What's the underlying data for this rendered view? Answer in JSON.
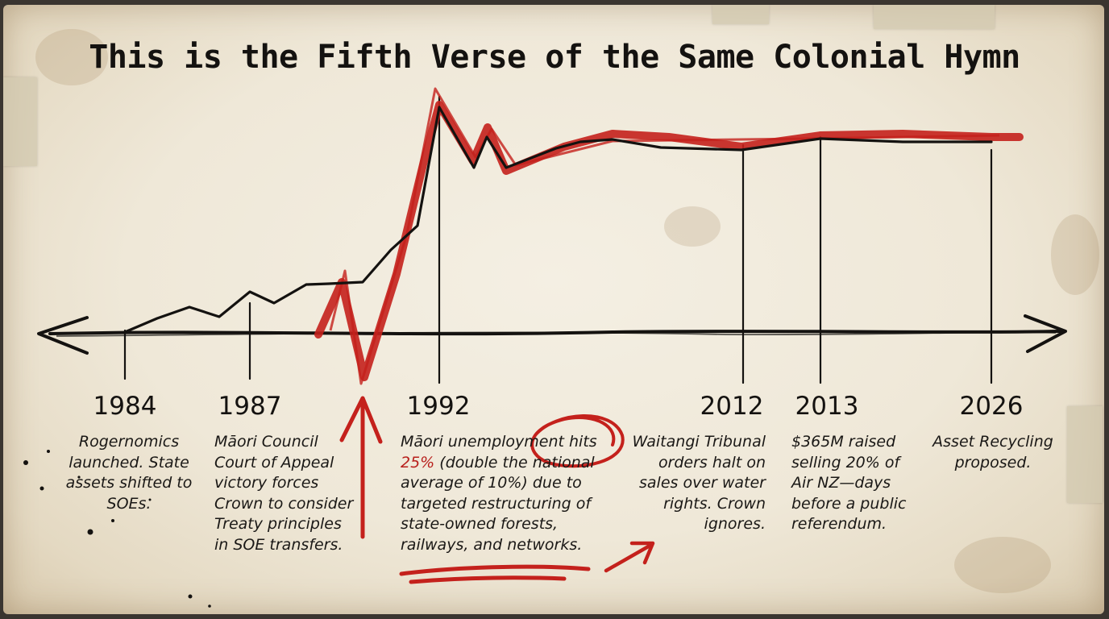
{
  "title": "This is the Fifth Verse of the Same Colonial Hymn",
  "colors": {
    "ink": "#141210",
    "accent_red": "#c4211c",
    "paper": "#efe8d8"
  },
  "events": [
    {
      "year": "1984",
      "text": "Rogernomics launched. State assets shifted to SOEs."
    },
    {
      "year": "1987",
      "text": "Māori Council Court of Appeal victory forces Crown to consider Treaty principles in SOE transfers."
    },
    {
      "year": "1992",
      "text_highlight": "25%",
      "text_pre": "Māori unemployment hits",
      "text_post": "(double the national average of 10%) due to targeted restructuring of state-owned forests, railways, and networks."
    },
    {
      "year": "2012",
      "text": "Waitangi Tribunal orders halt on sales over water rights. Crown ignores."
    },
    {
      "year": "2013",
      "text": "$365M raised selling 20% of Air NZ—days before a public referendum."
    },
    {
      "year": "2026",
      "text": "Asset Recycling proposed."
    }
  ]
}
